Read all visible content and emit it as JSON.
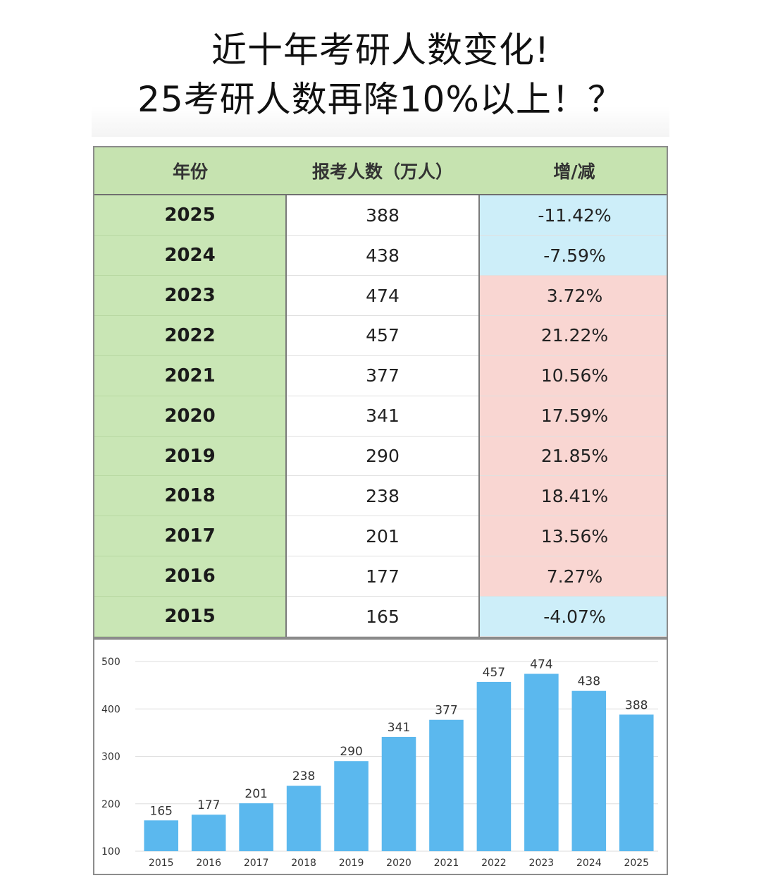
{
  "title": {
    "line1": "近十年考研人数变化!",
    "line2": "25考研人数再降10%以上！？"
  },
  "table": {
    "headers": [
      "年份",
      "报考人数（万人）",
      "增/减"
    ],
    "rows": [
      {
        "year": "2025",
        "count": "388",
        "change": "-11.42%",
        "trend": "down"
      },
      {
        "year": "2024",
        "count": "438",
        "change": "-7.59%",
        "trend": "down"
      },
      {
        "year": "2023",
        "count": "474",
        "change": "3.72%",
        "trend": "up"
      },
      {
        "year": "2022",
        "count": "457",
        "change": "21.22%",
        "trend": "up"
      },
      {
        "year": "2021",
        "count": "377",
        "change": "10.56%",
        "trend": "up"
      },
      {
        "year": "2020",
        "count": "341",
        "change": "17.59%",
        "trend": "up"
      },
      {
        "year": "2019",
        "count": "290",
        "change": "21.85%",
        "trend": "up"
      },
      {
        "year": "2018",
        "count": "238",
        "change": "18.41%",
        "trend": "up"
      },
      {
        "year": "2017",
        "count": "201",
        "change": "13.56%",
        "trend": "up"
      },
      {
        "year": "2016",
        "count": "177",
        "change": "7.27%",
        "trend": "up"
      },
      {
        "year": "2015",
        "count": "165",
        "change": "-4.07%",
        "trend": "down"
      }
    ]
  },
  "chart_data": {
    "type": "bar",
    "categories": [
      "2015",
      "2016",
      "2017",
      "2018",
      "2019",
      "2020",
      "2021",
      "2022",
      "2023",
      "2024",
      "2025"
    ],
    "values": [
      165,
      177,
      201,
      238,
      290,
      341,
      377,
      457,
      474,
      438,
      388
    ],
    "ylim": [
      100,
      500
    ],
    "yticks": [
      100,
      200,
      300,
      400,
      500
    ],
    "grid": true,
    "bar_color": "#5bb8ee",
    "title": "",
    "xlabel": "",
    "ylabel": ""
  }
}
